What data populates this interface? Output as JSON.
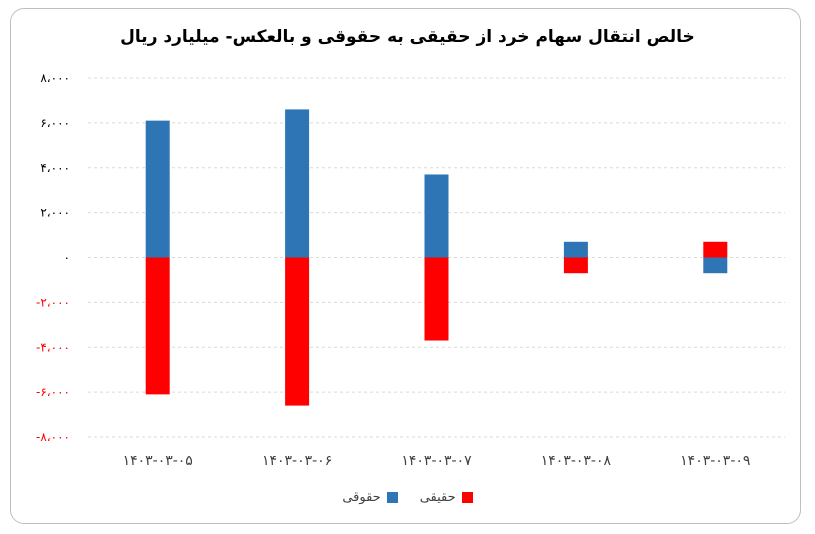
{
  "chart_data": {
    "type": "bar",
    "title": "خالص انتقال سهام خرد از حقیقی به حقوقی و بالعکس- میلیارد ریال",
    "categories": [
      "۱۴۰۳-۰۳-۰۵",
      "۱۴۰۳-۰۳-۰۶",
      "۱۴۰۳-۰۳-۰۷",
      "۱۴۰۳-۰۳-۰۸",
      "۱۴۰۳-۰۳-۰۹"
    ],
    "series": [
      {
        "name": "حقیقی",
        "color": "#ff0000",
        "values": [
          -6100,
          -6600,
          -3700,
          -700,
          700
        ]
      },
      {
        "name": "حقوقی",
        "color": "#2e75b6",
        "values": [
          6100,
          6600,
          3700,
          700,
          -700
        ]
      }
    ],
    "ylim": [
      -8000,
      8000
    ],
    "yticks": [
      {
        "value": 8000,
        "label": "۸،۰۰۰",
        "color": "#000000"
      },
      {
        "value": 6000,
        "label": "۶،۰۰۰",
        "color": "#000000"
      },
      {
        "value": 4000,
        "label": "۴،۰۰۰",
        "color": "#000000"
      },
      {
        "value": 2000,
        "label": "۲،۰۰۰",
        "color": "#000000"
      },
      {
        "value": 0,
        "label": "۰",
        "color": "#000000"
      },
      {
        "value": -2000,
        "label": "-۲،۰۰۰",
        "color": "#ff0000"
      },
      {
        "value": -4000,
        "label": "-۴،۰۰۰",
        "color": "#ff0000"
      },
      {
        "value": -6000,
        "label": "-۶،۰۰۰",
        "color": "#ff0000"
      },
      {
        "value": -8000,
        "label": "-۸،۰۰۰",
        "color": "#ff0000"
      }
    ],
    "grid": "horizontal dashed",
    "legend_position": "bottom"
  },
  "legend": {
    "items": [
      {
        "label": "حقوقی",
        "color": "#2e75b6"
      },
      {
        "label": "حقیقی",
        "color": "#ff0000"
      }
    ]
  }
}
